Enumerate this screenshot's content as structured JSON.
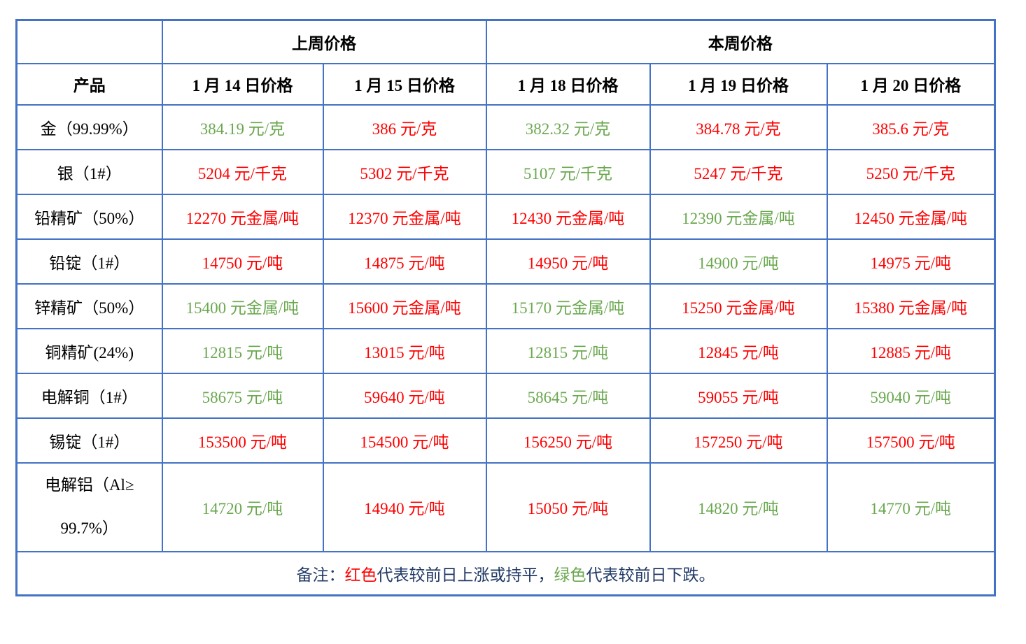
{
  "colors": {
    "border_blue": "#4472C4",
    "price_up_red": "#FF0000",
    "price_down_green": "#6AA84F",
    "note_navy": "#1F3864"
  },
  "table": {
    "week_headers": {
      "last_week": "上周价格",
      "this_week": "本周价格"
    },
    "product_header": "产品",
    "date_headers": [
      "1 月 14 日价格",
      "1 月 15 日价格",
      "1 月 18 日价格",
      "1 月 19 日价格",
      "1 月 20 日价格"
    ],
    "rows": [
      {
        "product": "金（99.99%）",
        "prices": [
          {
            "text": "384.19 元/克",
            "color": "green"
          },
          {
            "text": "386 元/克",
            "color": "red"
          },
          {
            "text": "382.32 元/克",
            "color": "green"
          },
          {
            "text": "384.78 元/克",
            "color": "red"
          },
          {
            "text": "385.6 元/克",
            "color": "red"
          }
        ]
      },
      {
        "product": "银（1#）",
        "prices": [
          {
            "text": "5204 元/千克",
            "color": "red"
          },
          {
            "text": "5302 元/千克",
            "color": "red"
          },
          {
            "text": "5107 元/千克",
            "color": "green"
          },
          {
            "text": "5247 元/千克",
            "color": "red"
          },
          {
            "text": "5250 元/千克",
            "color": "red"
          }
        ]
      },
      {
        "product": "铅精矿（50%）",
        "prices": [
          {
            "text": "12270 元金属/吨",
            "color": "red"
          },
          {
            "text": "12370 元金属/吨",
            "color": "red"
          },
          {
            "text": "12430 元金属/吨",
            "color": "red"
          },
          {
            "text": "12390 元金属/吨",
            "color": "green"
          },
          {
            "text": "12450 元金属/吨",
            "color": "red"
          }
        ]
      },
      {
        "product": "铅锭（1#）",
        "prices": [
          {
            "text": "14750 元/吨",
            "color": "red"
          },
          {
            "text": "14875 元/吨",
            "color": "red"
          },
          {
            "text": "14950 元/吨",
            "color": "red"
          },
          {
            "text": "14900 元/吨",
            "color": "green"
          },
          {
            "text": "14975 元/吨",
            "color": "red"
          }
        ]
      },
      {
        "product": "锌精矿（50%）",
        "prices": [
          {
            "text": "15400 元金属/吨",
            "color": "green"
          },
          {
            "text": "15600 元金属/吨",
            "color": "red"
          },
          {
            "text": "15170 元金属/吨",
            "color": "green"
          },
          {
            "text": "15250 元金属/吨",
            "color": "red"
          },
          {
            "text": "15380 元金属/吨",
            "color": "red"
          }
        ]
      },
      {
        "product": "铜精矿(24%)",
        "prices": [
          {
            "text": "12815 元/吨",
            "color": "green"
          },
          {
            "text": "13015 元/吨",
            "color": "red"
          },
          {
            "text": "12815 元/吨",
            "color": "green"
          },
          {
            "text": "12845 元/吨",
            "color": "red"
          },
          {
            "text": "12885 元/吨",
            "color": "red"
          }
        ]
      },
      {
        "product": "电解铜（1#）",
        "prices": [
          {
            "text": "58675 元/吨",
            "color": "green"
          },
          {
            "text": "59640 元/吨",
            "color": "red"
          },
          {
            "text": "58645 元/吨",
            "color": "green"
          },
          {
            "text": "59055 元/吨",
            "color": "red"
          },
          {
            "text": "59040 元/吨",
            "color": "green"
          }
        ]
      },
      {
        "product": "锡锭（1#）",
        "prices": [
          {
            "text": "153500 元/吨",
            "color": "red"
          },
          {
            "text": "154500 元/吨",
            "color": "red"
          },
          {
            "text": "156250 元/吨",
            "color": "red"
          },
          {
            "text": "157250 元/吨",
            "color": "red"
          },
          {
            "text": "157500 元/吨",
            "color": "red"
          }
        ]
      },
      {
        "product": "电解铝（Al≥\n99.7%）",
        "tall": true,
        "prices": [
          {
            "text": "14720 元/吨",
            "color": "green"
          },
          {
            "text": "14940 元/吨",
            "color": "red"
          },
          {
            "text": "15050 元/吨",
            "color": "red"
          },
          {
            "text": "14820 元/吨",
            "color": "green"
          },
          {
            "text": "14770 元/吨",
            "color": "green"
          }
        ]
      }
    ],
    "note": {
      "prefix": "备注：",
      "red_label": "红色",
      "red_desc": "代表较前日上涨或持平，",
      "green_label": "绿色",
      "green_desc": "代表较前日下跌。"
    }
  }
}
